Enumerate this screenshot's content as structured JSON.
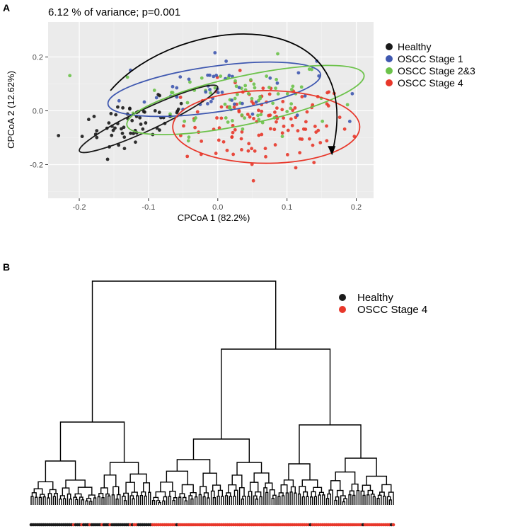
{
  "colors": {
    "healthy": "#1a1a1a",
    "stage1": "#3f58b0",
    "stage23": "#6cc24a",
    "stage4": "#e8372a",
    "panel_bg": "#ebebeb",
    "grid_major": "#ffffff",
    "grid_minor": "#f4f4f4"
  },
  "chart_data": [
    {
      "panel_label": "A",
      "type": "scatter",
      "title": "6.12 % of variance; p=0.001",
      "xlabel": "CPCoA 1 (82.2%)",
      "ylabel": "CPCoA 2 (12.62%)",
      "xlim": [
        -0.245,
        0.225
      ],
      "ylim": [
        -0.325,
        0.33
      ],
      "xticks": [
        -0.2,
        -0.1,
        0.0,
        0.1,
        0.2
      ],
      "xtick_labels": [
        "-0.2",
        "-0.1",
        "0.0",
        "0.1",
        "0.2"
      ],
      "yticks": [
        -0.2,
        0.0,
        0.2
      ],
      "ytick_labels": [
        "-0.2",
        "0.0",
        "0.2"
      ],
      "grid": true,
      "legend_position": "right",
      "legend": [
        "Healthy",
        "OSCC Stage 1",
        "OSCC Stage 2&3",
        "OSCC Stage 4"
      ],
      "series_approx": [
        {
          "name": "Healthy",
          "center": [
            -0.12,
            -0.04
          ],
          "sd": [
            0.038,
            0.035
          ],
          "n": 60
        },
        {
          "name": "OSCC Stage 1",
          "center": [
            0.0,
            0.08
          ],
          "sd": [
            0.07,
            0.06
          ],
          "n": 45
        },
        {
          "name": "OSCC Stage 2&3",
          "center": [
            0.03,
            0.05
          ],
          "sd": [
            0.07,
            0.07
          ],
          "n": 75
        },
        {
          "name": "OSCC Stage 4",
          "center": [
            0.07,
            -0.05
          ],
          "sd": [
            0.06,
            0.08
          ],
          "n": 120
        }
      ],
      "ellipses": [
        {
          "name": "Healthy",
          "center": [
            -0.1,
            -0.03
          ],
          "radii": [
            0.11,
            0.04
          ],
          "angle_deg": 25
        },
        {
          "name": "OSCC Stage 1",
          "center": [
            -0.005,
            0.08
          ],
          "radii": [
            0.155,
            0.085
          ],
          "angle_deg": 8
        },
        {
          "name": "OSCC Stage 2&3",
          "center": [
            0.04,
            0.04
          ],
          "radii": [
            0.175,
            0.09
          ],
          "angle_deg": 12
        },
        {
          "name": "OSCC Stage 4",
          "center": [
            0.07,
            -0.06
          ],
          "radii": [
            0.135,
            0.135
          ],
          "angle_deg": 0
        }
      ],
      "annotation": "curved arrow from Healthy through Stage 1, 2&3 toward Stage 4"
    },
    {
      "panel_label": "B",
      "type": "dendrogram",
      "legend_position": "top-right",
      "legend": [
        "Healthy",
        "OSCC Stage 4"
      ],
      "leaf_counts": {
        "Healthy": 60,
        "OSCC Stage 4": 120
      },
      "clusters": [
        "left cluster (mostly Healthy)",
        "right cluster (mostly OSCC Stage 4)"
      ]
    }
  ]
}
